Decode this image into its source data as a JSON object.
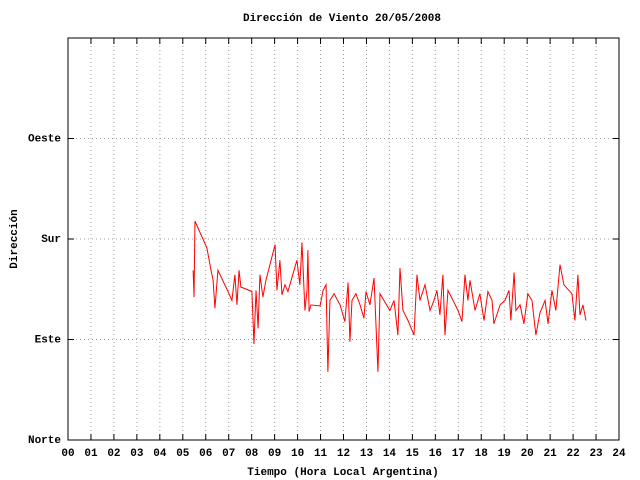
{
  "chart_data": {
    "type": "line",
    "title": "Dirección de Viento 20/05/2008",
    "xlabel": "Tiempo (Hora Local Argentina)",
    "ylabel": "Dirección",
    "color": "#ff0000",
    "grid": true,
    "xlim": [
      0,
      24
    ],
    "ylim": [
      0,
      360
    ],
    "xticks": [
      {
        "value": 0,
        "label": "00"
      },
      {
        "value": 1,
        "label": "01"
      },
      {
        "value": 2,
        "label": "02"
      },
      {
        "value": 3,
        "label": "03"
      },
      {
        "value": 4,
        "label": "04"
      },
      {
        "value": 5,
        "label": "05"
      },
      {
        "value": 6,
        "label": "06"
      },
      {
        "value": 7,
        "label": "07"
      },
      {
        "value": 8,
        "label": "08"
      },
      {
        "value": 9,
        "label": "09"
      },
      10,
      11,
      12,
      13,
      14,
      15,
      16,
      17,
      18,
      19,
      20,
      21,
      22,
      23,
      24
    ],
    "yticks": [
      {
        "value": 0,
        "label": "Norte"
      },
      {
        "value": 90,
        "label": "Este"
      },
      {
        "value": 180,
        "label": "Sur"
      },
      {
        "value": 270,
        "label": "Oeste"
      }
    ],
    "x": [
      5.45,
      5.49,
      5.53,
      6.05,
      6.23,
      6.32,
      6.4,
      6.53,
      6.97,
      7.14,
      7.27,
      7.36,
      7.45,
      7.53,
      8.01,
      8.1,
      8.19,
      8.28,
      8.36,
      8.49,
      8.62,
      9.02,
      9.1,
      9.23,
      9.32,
      9.45,
      9.58,
      9.97,
      10.1,
      10.19,
      10.32,
      10.41,
      10.45,
      10.5,
      10.58,
      10.98,
      11.11,
      11.24,
      11.32,
      11.41,
      11.59,
      11.85,
      12.06,
      12.2,
      12.28,
      12.37,
      12.54,
      12.72,
      12.89,
      12.98,
      13.15,
      13.33,
      13.5,
      13.59,
      14.02,
      14.2,
      14.37,
      14.46,
      14.59,
      14.81,
      15.07,
      15.2,
      15.33,
      15.55,
      15.77,
      15.94,
      16.07,
      16.2,
      16.33,
      16.42,
      16.55,
      16.77,
      16.99,
      17.16,
      17.29,
      17.42,
      17.51,
      17.73,
      17.94,
      18.12,
      18.29,
      18.47,
      18.55,
      18.82,
      19.03,
      19.21,
      19.29,
      19.43,
      19.51,
      19.69,
      19.86,
      20.03,
      20.21,
      20.38,
      20.56,
      20.78,
      20.91,
      21.08,
      21.25,
      21.43,
      21.6,
      21.95,
      22.08,
      22.21,
      22.3,
      22.43,
      22.56
    ],
    "values": [
      152,
      128,
      196,
      172,
      152,
      143,
      118,
      152,
      133,
      125,
      148,
      121,
      152,
      137,
      133,
      86,
      134,
      100,
      148,
      128,
      143,
      175,
      134,
      161,
      130,
      139,
      133,
      161,
      139,
      177,
      116,
      134,
      170,
      115,
      121,
      120,
      134,
      139,
      61,
      125,
      131,
      121,
      106,
      141,
      88,
      125,
      131,
      121,
      109,
      133,
      121,
      145,
      61,
      131,
      116,
      125,
      94,
      154,
      116,
      107,
      94,
      148,
      125,
      139,
      116,
      125,
      134,
      112,
      148,
      94,
      134,
      125,
      116,
      106,
      148,
      125,
      143,
      116,
      131,
      107,
      133,
      125,
      104,
      121,
      125,
      134,
      107,
      150,
      116,
      121,
      104,
      131,
      125,
      94,
      114,
      125,
      104,
      134,
      116,
      157,
      139,
      131,
      107,
      148,
      112,
      121,
      107
    ]
  }
}
